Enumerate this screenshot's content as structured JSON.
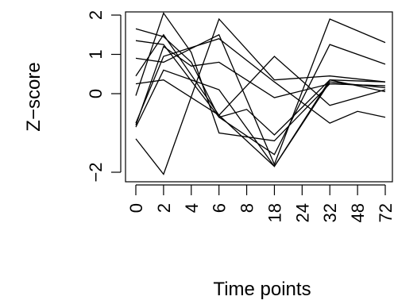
{
  "chart_data": {
    "type": "line",
    "xlabel": "Time points",
    "ylabel": "Z−score",
    "categories": [
      "0",
      "2",
      "4",
      "6",
      "8",
      "18",
      "24",
      "32",
      "48",
      "72"
    ],
    "yticks": [
      {
        "value": -2,
        "label": "−2"
      },
      {
        "value": 0,
        "label": "0"
      },
      {
        "value": 1,
        "label": "1"
      },
      {
        "value": 2,
        "label": "2"
      }
    ],
    "ylim": [
      -2.2,
      2.1
    ],
    "grid": false,
    "legend": "none",
    "line_color": "#000000",
    "series": [
      {
        "values": [
          1.65,
          1.45,
          0.8,
          -0.6,
          -0.4,
          -1.05,
          null,
          0.35,
          null,
          0.05
        ]
      },
      {
        "values": [
          -1.15,
          -2.05,
          null,
          1.9,
          null,
          0.35,
          null,
          0.45,
          null,
          0.3
        ]
      },
      {
        "values": [
          -0.8,
          1.2,
          0.7,
          0.8,
          null,
          -0.1,
          null,
          0.25,
          null,
          0.2
        ]
      },
      {
        "values": [
          0.9,
          0.8,
          null,
          1.5,
          null,
          -1.8,
          null,
          1.9,
          null,
          1.3
        ]
      },
      {
        "values": [
          1.35,
          1.25,
          null,
          -0.6,
          null,
          -1.55,
          null,
          1.25,
          null,
          0.75
        ]
      },
      {
        "values": [
          -0.05,
          2.05,
          1.05,
          -1.0,
          null,
          -1.2,
          null,
          0.25,
          null,
          0.2
        ]
      },
      {
        "values": [
          0.45,
          1.5,
          null,
          -0.55,
          null,
          0.95,
          null,
          -0.3,
          null,
          0.1
        ]
      },
      {
        "values": [
          -0.85,
          0.6,
          null,
          0.1,
          null,
          -1.85,
          null,
          0.35,
          null,
          0.3
        ]
      },
      {
        "values": [
          0.25,
          0.35,
          null,
          -0.55,
          null,
          -1.85,
          null,
          0.3,
          null,
          0.15
        ]
      },
      {
        "values": [
          -0.75,
          0.95,
          null,
          1.4,
          null,
          0.3,
          null,
          -0.75,
          -0.45,
          -0.6
        ]
      }
    ]
  }
}
